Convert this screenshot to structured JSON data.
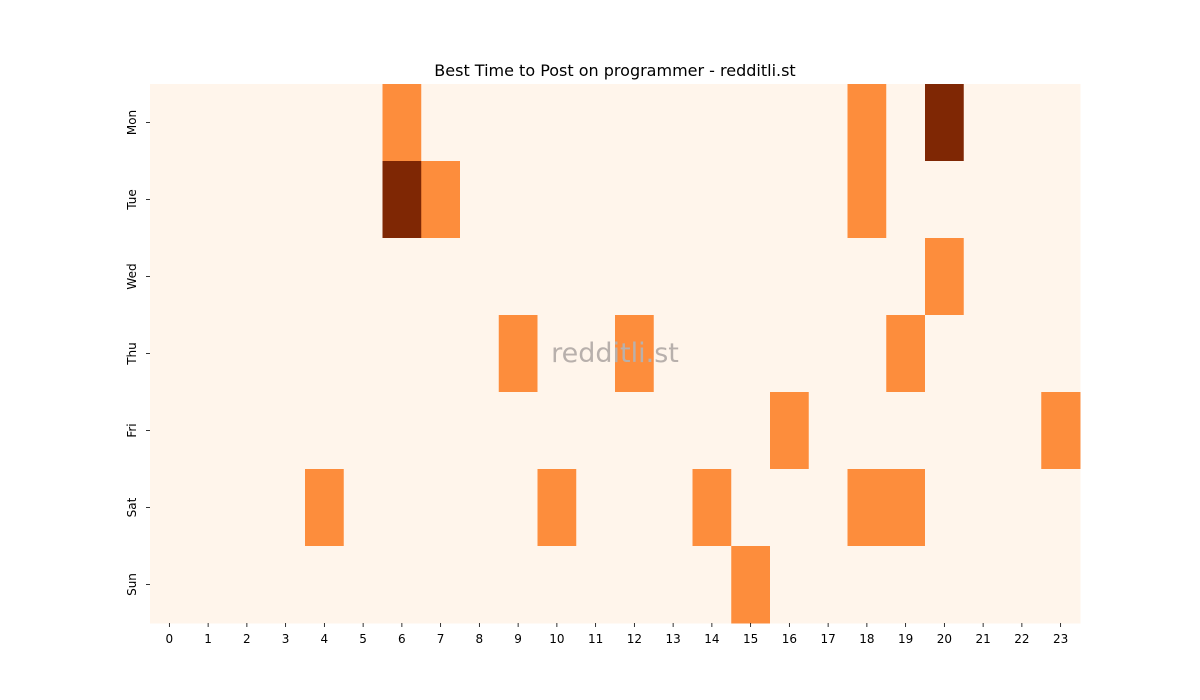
{
  "chart_data": {
    "type": "heatmap",
    "title": "Best Time to Post on programmer - redditli.st",
    "watermark": "redditli.st",
    "x_categories": [
      "0",
      "1",
      "2",
      "3",
      "4",
      "5",
      "6",
      "7",
      "8",
      "9",
      "10",
      "11",
      "12",
      "13",
      "14",
      "15",
      "16",
      "17",
      "18",
      "19",
      "20",
      "21",
      "22",
      "23"
    ],
    "y_categories": [
      "Mon",
      "Tue",
      "Wed",
      "Thu",
      "Fri",
      "Sat",
      "Sun"
    ],
    "values": [
      [
        0,
        0,
        0,
        0,
        0,
        0,
        1,
        0,
        0,
        0,
        0,
        0,
        0,
        0,
        0,
        0,
        0,
        0,
        1,
        0,
        2,
        0,
        0,
        0
      ],
      [
        0,
        0,
        0,
        0,
        0,
        0,
        2,
        1,
        0,
        0,
        0,
        0,
        0,
        0,
        0,
        0,
        0,
        0,
        1,
        0,
        0,
        0,
        0,
        0
      ],
      [
        0,
        0,
        0,
        0,
        0,
        0,
        0,
        0,
        0,
        0,
        0,
        0,
        0,
        0,
        0,
        0,
        0,
        0,
        0,
        0,
        1,
        0,
        0,
        0
      ],
      [
        0,
        0,
        0,
        0,
        0,
        0,
        0,
        0,
        0,
        1,
        0,
        0,
        1,
        0,
        0,
        0,
        0,
        0,
        0,
        1,
        0,
        0,
        0,
        0
      ],
      [
        0,
        0,
        0,
        0,
        0,
        0,
        0,
        0,
        0,
        0,
        0,
        0,
        0,
        0,
        0,
        0,
        1,
        0,
        0,
        0,
        0,
        0,
        0,
        1
      ],
      [
        0,
        0,
        0,
        0,
        1,
        0,
        0,
        0,
        0,
        0,
        1,
        0,
        0,
        0,
        1,
        0,
        0,
        0,
        1,
        1,
        0,
        0,
        0,
        0
      ],
      [
        0,
        0,
        0,
        0,
        0,
        0,
        0,
        0,
        0,
        0,
        0,
        0,
        0,
        0,
        0,
        1,
        0,
        0,
        0,
        0,
        0,
        0,
        0,
        0
      ]
    ],
    "vmin": 0,
    "vmax": 2,
    "colormap": [
      "#fff5eb",
      "#fd8d3c",
      "#7f2704"
    ],
    "grid": false,
    "legend": "none"
  }
}
